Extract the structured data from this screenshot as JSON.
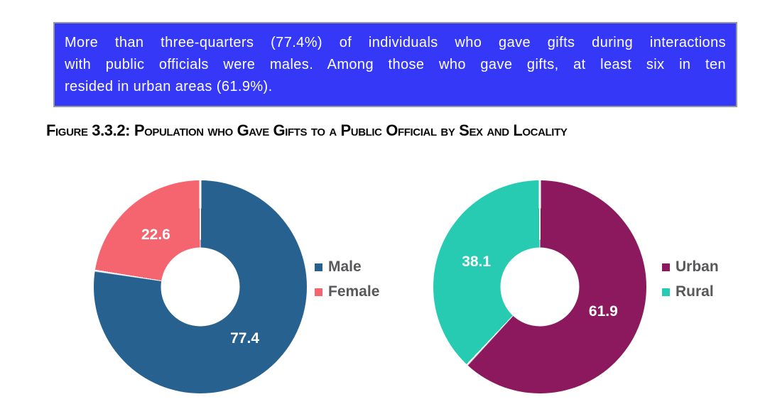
{
  "banner": {
    "lines": [
      "More than three-quarters (77.4%) of individuals who gave gifts during interactions",
      "with public officials were males. Among those who gave gifts, at least six in ten",
      "resided in urban areas (61.9%)."
    ],
    "background_color": "#3538F7",
    "border_color": "#96989F",
    "text_color": "#FFFFFF"
  },
  "figure_title": "Figure 3.3.2: Population who Gave Gifts to a Public Official by Sex and Locality",
  "chart_data": [
    {
      "type": "pie",
      "subtype": "donut",
      "name": "sex",
      "categories": [
        "Male",
        "Female"
      ],
      "values": [
        77.4,
        22.6
      ],
      "data_labels": [
        "77.4",
        "22.6"
      ],
      "colors": [
        "#26618F",
        "#F5656F"
      ],
      "start_angle_deg": 0,
      "direction": "clockwise",
      "hole_ratio": 0.37,
      "label_color": "#FFFFFF",
      "legend_position": "right",
      "legend_text_color": "#58585A"
    },
    {
      "type": "pie",
      "subtype": "donut",
      "name": "locality",
      "categories": [
        "Urban",
        "Rural"
      ],
      "values": [
        61.9,
        38.1
      ],
      "data_labels": [
        "61.9",
        "38.1"
      ],
      "colors": [
        "#8C195E",
        "#27CBB2"
      ],
      "start_angle_deg": 0,
      "direction": "clockwise",
      "hole_ratio": 0.37,
      "label_color": "#FFFFFF",
      "legend_position": "right",
      "legend_text_color": "#58585A"
    }
  ]
}
